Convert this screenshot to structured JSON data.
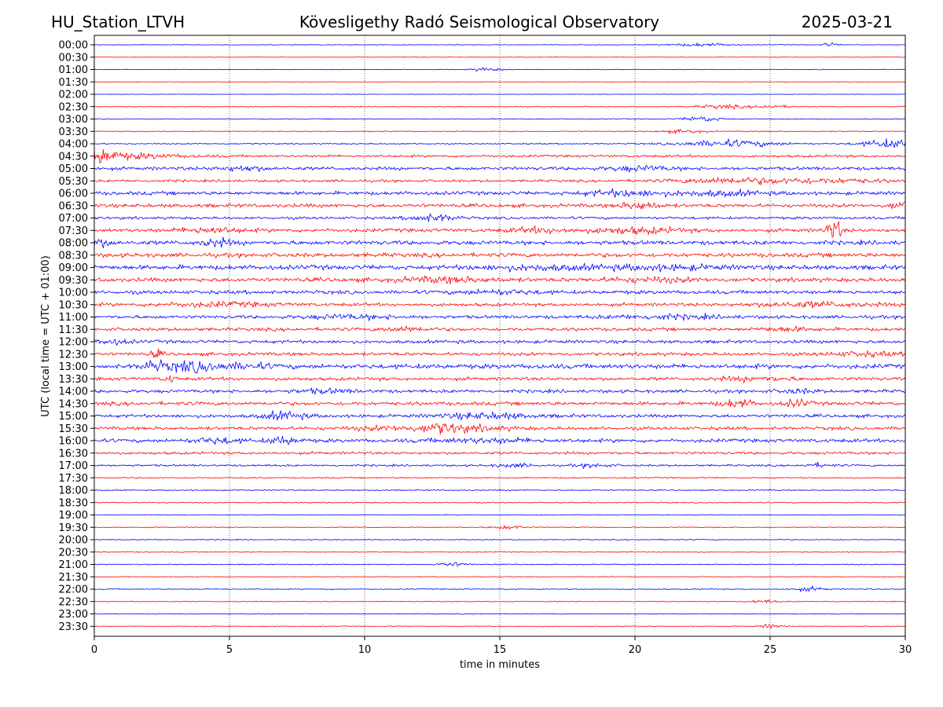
{
  "header": {
    "station": "HU_Station_LTVH",
    "title": "Kövesligethy Radó Seismological Observatory",
    "date": "2025-03-21"
  },
  "chart_data": {
    "type": "line",
    "title": "Kövesligethy Radó Seismological Observatory",
    "xlabel": "time in minutes",
    "ylabel": "UTC (local time = UTC + 01:00)",
    "xlim": [
      0,
      30
    ],
    "x_ticks": [
      "0",
      "5",
      "10",
      "15",
      "20",
      "25",
      "30"
    ],
    "x_tick_values": [
      0,
      5,
      10,
      15,
      20,
      25,
      30
    ],
    "grid": "vertical dotted lines at x ticks",
    "series_colors": [
      "#0000ff",
      "#ff0000"
    ],
    "rows": [
      {
        "label": "00:00",
        "base": 0.4,
        "events": [
          [
            22.5,
            0.8,
            2.0
          ],
          [
            27.2,
            0.2,
            2.5
          ]
        ]
      },
      {
        "label": "00:30",
        "base": 0.3,
        "events": []
      },
      {
        "label": "01:00",
        "base": 0.4,
        "events": [
          [
            14.5,
            0.4,
            2.0
          ]
        ]
      },
      {
        "label": "01:30",
        "base": 0.3,
        "events": []
      },
      {
        "label": "02:00",
        "base": 0.3,
        "events": []
      },
      {
        "label": "02:30",
        "base": 0.5,
        "events": [
          [
            23.2,
            0.6,
            2.5
          ],
          [
            25.0,
            0.5,
            2.0
          ]
        ]
      },
      {
        "label": "03:00",
        "base": 0.6,
        "events": [
          [
            22.5,
            0.5,
            3.0
          ]
        ]
      },
      {
        "label": "03:30",
        "base": 0.6,
        "events": [
          [
            21.8,
            0.6,
            2.0
          ]
        ]
      },
      {
        "label": "04:00",
        "base": 0.8,
        "events": [
          [
            23.5,
            1.3,
            4.0
          ],
          [
            29.5,
            0.8,
            5.0
          ]
        ]
      },
      {
        "label": "04:30",
        "base": 1.5,
        "events": [
          [
            0.3,
            0.3,
            7.0
          ],
          [
            1.0,
            1.5,
            3.0
          ]
        ]
      },
      {
        "label": "05:00",
        "base": 2.0,
        "events": [
          [
            5.5,
            0.6,
            2.5
          ],
          [
            20.2,
            0.8,
            2.5
          ]
        ]
      },
      {
        "label": "05:30",
        "base": 1.5,
        "events": [
          [
            23.5,
            1.5,
            3.0
          ],
          [
            27.0,
            1.5,
            2.5
          ]
        ]
      },
      {
        "label": "06:00",
        "base": 2.2,
        "events": [
          [
            19.5,
            1.0,
            3.0
          ],
          [
            23.0,
            1.2,
            2.5
          ]
        ]
      },
      {
        "label": "06:30",
        "base": 2.2,
        "events": [
          [
            20.2,
            0.5,
            4.0
          ],
          [
            29.8,
            0.3,
            4.0
          ]
        ]
      },
      {
        "label": "07:00",
        "base": 1.6,
        "events": [
          [
            12.5,
            0.6,
            4.0
          ]
        ]
      },
      {
        "label": "07:30",
        "base": 2.2,
        "events": [
          [
            4.3,
            0.8,
            3.0
          ],
          [
            16.5,
            0.8,
            2.5
          ],
          [
            20.0,
            1.2,
            3.0
          ],
          [
            27.2,
            0.12,
            10.0
          ],
          [
            27.5,
            0.12,
            9.0
          ]
        ]
      },
      {
        "label": "08:00",
        "base": 2.5,
        "events": [
          [
            0.2,
            0.3,
            4.0
          ],
          [
            4.5,
            0.4,
            4.0
          ]
        ]
      },
      {
        "label": "08:30",
        "base": 2.5,
        "events": []
      },
      {
        "label": "09:00",
        "base": 2.8,
        "events": [
          [
            16.5,
            1.5,
            2.0
          ],
          [
            21.0,
            1.5,
            2.0
          ]
        ]
      },
      {
        "label": "09:30",
        "base": 2.5,
        "events": [
          [
            13.0,
            1.2,
            2.5
          ],
          [
            20.5,
            1.2,
            2.0
          ]
        ]
      },
      {
        "label": "10:00",
        "base": 2.2,
        "events": [
          [
            15.0,
            1.0,
            2.0
          ]
        ]
      },
      {
        "label": "10:30",
        "base": 2.0,
        "events": [
          [
            4.5,
            1.5,
            2.0
          ],
          [
            26.5,
            1.5,
            2.5
          ]
        ]
      },
      {
        "label": "11:00",
        "base": 2.0,
        "events": [
          [
            9.5,
            1.2,
            2.0
          ],
          [
            21.0,
            1.5,
            2.0
          ]
        ]
      },
      {
        "label": "11:30",
        "base": 2.0,
        "events": [
          [
            11.5,
            0.6,
            2.5
          ],
          [
            25.5,
            0.8,
            2.0
          ]
        ]
      },
      {
        "label": "12:00",
        "base": 2.0,
        "events": [
          [
            0.6,
            0.5,
            2.5
          ]
        ]
      },
      {
        "label": "12:30",
        "base": 2.0,
        "events": [
          [
            2.3,
            0.15,
            4.0
          ],
          [
            28.5,
            1.0,
            2.0
          ]
        ]
      },
      {
        "label": "13:00",
        "base": 2.8,
        "events": [
          [
            2.2,
            0.3,
            5.0
          ],
          [
            3.2,
            0.5,
            3.5
          ],
          [
            4.0,
            0.4,
            4.0
          ],
          [
            5.5,
            0.8,
            2.5
          ]
        ]
      },
      {
        "label": "13:30",
        "base": 2.0,
        "events": [
          [
            2.8,
            0.15,
            4.0
          ],
          [
            24.5,
            1.0,
            2.0
          ]
        ]
      },
      {
        "label": "14:00",
        "base": 2.0,
        "events": [
          [
            8.5,
            0.8,
            2.0
          ],
          [
            26.0,
            0.5,
            2.0
          ]
        ]
      },
      {
        "label": "14:30",
        "base": 2.2,
        "events": [
          [
            23.8,
            0.4,
            4.5
          ],
          [
            26.0,
            0.3,
            4.0
          ]
        ]
      },
      {
        "label": "15:00",
        "base": 2.0,
        "events": [
          [
            7.0,
            0.6,
            4.0
          ],
          [
            14.5,
            1.2,
            3.0
          ]
        ]
      },
      {
        "label": "15:30",
        "base": 2.0,
        "events": [
          [
            12.8,
            0.5,
            4.5
          ],
          [
            11.0,
            1.0,
            2.0
          ],
          [
            14.0,
            1.0,
            2.5
          ]
        ]
      },
      {
        "label": "16:00",
        "base": 2.2,
        "events": [
          [
            4.5,
            0.6,
            3.0
          ],
          [
            7.0,
            0.4,
            4.0
          ],
          [
            14.5,
            1.5,
            2.0
          ]
        ]
      },
      {
        "label": "16:30",
        "base": 1.6,
        "events": []
      },
      {
        "label": "17:00",
        "base": 1.2,
        "events": [
          [
            15.5,
            0.5,
            2.0
          ],
          [
            18.5,
            0.5,
            2.0
          ],
          [
            26.8,
            0.4,
            2.0
          ]
        ]
      },
      {
        "label": "17:30",
        "base": 0.8,
        "events": []
      },
      {
        "label": "18:00",
        "base": 0.7,
        "events": []
      },
      {
        "label": "18:30",
        "base": 0.7,
        "events": []
      },
      {
        "label": "19:00",
        "base": 0.5,
        "events": []
      },
      {
        "label": "19:30",
        "base": 0.6,
        "events": [
          [
            15.3,
            0.4,
            2.5
          ]
        ]
      },
      {
        "label": "20:00",
        "base": 0.6,
        "events": []
      },
      {
        "label": "20:30",
        "base": 0.5,
        "events": []
      },
      {
        "label": "21:00",
        "base": 0.6,
        "events": [
          [
            13.2,
            0.4,
            2.5
          ]
        ]
      },
      {
        "label": "21:30",
        "base": 0.5,
        "events": []
      },
      {
        "label": "22:00",
        "base": 0.6,
        "events": [
          [
            26.5,
            0.4,
            2.5
          ]
        ]
      },
      {
        "label": "22:30",
        "base": 0.5,
        "events": [
          [
            24.8,
            0.4,
            2.0
          ]
        ]
      },
      {
        "label": "23:00",
        "base": 0.5,
        "events": []
      },
      {
        "label": "23:30",
        "base": 0.5,
        "events": [
          [
            25.0,
            0.3,
            2.5
          ]
        ]
      }
    ]
  }
}
